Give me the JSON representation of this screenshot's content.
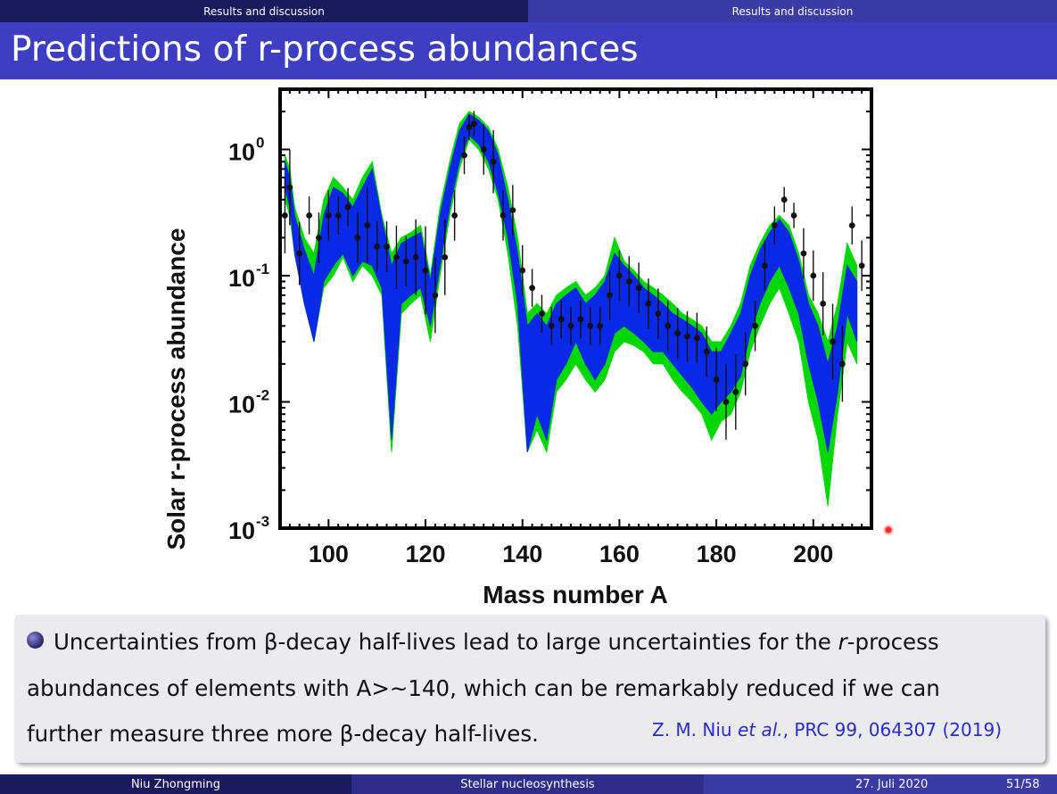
{
  "header": {
    "nav_left": "Results and discussion",
    "nav_right": "Results and discussion",
    "title": "Predictions of r-process abundances"
  },
  "chart_data": {
    "type": "line",
    "xlabel": "Mass number A",
    "ylabel": "Solar r-process abundance",
    "xlim": [
      90,
      212
    ],
    "ylim": [
      0.001,
      3
    ],
    "yscale": "log",
    "xticks": [
      100,
      120,
      140,
      160,
      180,
      200
    ],
    "yticks": [
      {
        "base": "10",
        "exp": "0"
      },
      {
        "base": "10",
        "exp": "-1"
      },
      {
        "base": "10",
        "exp": "-2"
      },
      {
        "base": "10",
        "exp": "-3"
      }
    ],
    "series": [
      {
        "color": "#00d800",
        "x": [
          91,
          92,
          93,
          95,
          97,
          99,
          101,
          103,
          105,
          107,
          109,
          111,
          113,
          115,
          117,
          119,
          121,
          123,
          125,
          127,
          129,
          131,
          133,
          135,
          137,
          139,
          141,
          143,
          145,
          147,
          149,
          151,
          153,
          155,
          157,
          159,
          161,
          163,
          165,
          167,
          169,
          171,
          173,
          175,
          177,
          179,
          181,
          183,
          185,
          187,
          189,
          191,
          193,
          195,
          197,
          199,
          201,
          203,
          205,
          207,
          209
        ],
        "lo": [
          0.4,
          0.3,
          0.15,
          0.06,
          0.03,
          0.08,
          0.1,
          0.14,
          0.09,
          0.12,
          0.1,
          0.07,
          0.004,
          0.05,
          0.06,
          0.07,
          0.03,
          0.1,
          0.3,
          0.7,
          1.2,
          1.0,
          0.7,
          0.4,
          0.15,
          0.04,
          0.004,
          0.006,
          0.004,
          0.012,
          0.015,
          0.02,
          0.015,
          0.012,
          0.015,
          0.025,
          0.03,
          0.028,
          0.025,
          0.02,
          0.02,
          0.015,
          0.012,
          0.01,
          0.008,
          0.005,
          0.007,
          0.008,
          0.012,
          0.025,
          0.04,
          0.06,
          0.08,
          0.05,
          0.03,
          0.01,
          0.005,
          0.0015,
          0.008,
          0.03,
          0.02
        ],
        "hi": [
          0.9,
          0.7,
          0.35,
          0.2,
          0.15,
          0.4,
          0.6,
          0.5,
          0.4,
          0.6,
          0.8,
          0.3,
          0.15,
          0.2,
          0.22,
          0.25,
          0.1,
          0.35,
          0.8,
          1.6,
          2.0,
          1.8,
          1.5,
          1.0,
          0.5,
          0.2,
          0.05,
          0.06,
          0.05,
          0.07,
          0.08,
          0.09,
          0.07,
          0.08,
          0.1,
          0.2,
          0.13,
          0.11,
          0.09,
          0.08,
          0.07,
          0.06,
          0.05,
          0.045,
          0.04,
          0.03,
          0.03,
          0.04,
          0.06,
          0.12,
          0.18,
          0.25,
          0.3,
          0.25,
          0.15,
          0.07,
          0.05,
          0.03,
          0.06,
          0.18,
          0.12
        ]
      },
      {
        "color": "#0a28e8",
        "x": [
          91,
          92,
          93,
          95,
          97,
          99,
          101,
          103,
          105,
          107,
          109,
          111,
          113,
          115,
          117,
          119,
          121,
          123,
          125,
          127,
          129,
          131,
          133,
          135,
          137,
          139,
          141,
          143,
          145,
          147,
          149,
          151,
          153,
          155,
          157,
          159,
          161,
          163,
          165,
          167,
          169,
          171,
          173,
          175,
          177,
          179,
          181,
          183,
          185,
          187,
          189,
          191,
          193,
          195,
          197,
          199,
          201,
          203,
          205,
          207,
          209
        ],
        "lo": [
          0.5,
          0.35,
          0.15,
          0.06,
          0.03,
          0.09,
          0.12,
          0.15,
          0.1,
          0.13,
          0.12,
          0.08,
          0.005,
          0.06,
          0.07,
          0.08,
          0.04,
          0.12,
          0.35,
          0.8,
          1.3,
          1.1,
          0.8,
          0.45,
          0.2,
          0.06,
          0.004,
          0.008,
          0.005,
          0.015,
          0.02,
          0.03,
          0.02,
          0.015,
          0.02,
          0.035,
          0.04,
          0.035,
          0.03,
          0.025,
          0.025,
          0.02,
          0.016,
          0.013,
          0.01,
          0.008,
          0.01,
          0.012,
          0.016,
          0.035,
          0.06,
          0.09,
          0.12,
          0.08,
          0.05,
          0.02,
          0.01,
          0.004,
          0.012,
          0.05,
          0.03
        ],
        "hi": [
          0.8,
          0.6,
          0.3,
          0.16,
          0.1,
          0.3,
          0.5,
          0.45,
          0.35,
          0.5,
          0.7,
          0.28,
          0.12,
          0.18,
          0.2,
          0.22,
          0.09,
          0.3,
          0.7,
          1.4,
          1.9,
          1.7,
          1.4,
          0.9,
          0.4,
          0.15,
          0.04,
          0.05,
          0.04,
          0.06,
          0.07,
          0.08,
          0.06,
          0.07,
          0.09,
          0.15,
          0.12,
          0.1,
          0.08,
          0.07,
          0.06,
          0.05,
          0.045,
          0.04,
          0.035,
          0.025,
          0.025,
          0.035,
          0.05,
          0.1,
          0.16,
          0.22,
          0.28,
          0.22,
          0.13,
          0.06,
          0.04,
          0.02,
          0.04,
          0.12,
          0.09
        ]
      },
      {
        "type": "scatter",
        "color": "#111111",
        "x": [
          91,
          92,
          94,
          96,
          98,
          100,
          102,
          104,
          106,
          108,
          110,
          112,
          114,
          116,
          118,
          120,
          122,
          124,
          126,
          128,
          129,
          130,
          132,
          134,
          136,
          138,
          140,
          142,
          144,
          146,
          148,
          150,
          152,
          154,
          156,
          158,
          160,
          162,
          164,
          166,
          168,
          170,
          172,
          174,
          176,
          178,
          180,
          182,
          184,
          186,
          188,
          190,
          192,
          194,
          196,
          198,
          200,
          202,
          204,
          206,
          208,
          210
        ],
        "y": [
          0.3,
          0.5,
          0.15,
          0.3,
          0.2,
          0.3,
          0.3,
          0.35,
          0.2,
          0.25,
          0.17,
          0.17,
          0.14,
          0.13,
          0.14,
          0.11,
          0.07,
          0.14,
          0.3,
          0.9,
          1.5,
          1.6,
          1.0,
          0.8,
          0.3,
          0.33,
          0.11,
          0.08,
          0.05,
          0.04,
          0.045,
          0.04,
          0.045,
          0.04,
          0.04,
          0.07,
          0.1,
          0.09,
          0.08,
          0.06,
          0.05,
          0.04,
          0.035,
          0.033,
          0.032,
          0.025,
          0.015,
          0.01,
          0.012,
          0.02,
          0.04,
          0.12,
          0.25,
          0.4,
          0.3,
          0.15,
          0.1,
          0.06,
          0.03,
          0.02,
          0.25,
          0.12
        ],
        "err": [
          0.3,
          0.3,
          0.25,
          0.15,
          0.2,
          0.2,
          0.15,
          0.15,
          0.2,
          0.3,
          0.2,
          0.2,
          0.25,
          0.2,
          0.3,
          0.35,
          0.3,
          0.3,
          0.2,
          0.15,
          0.1,
          0.1,
          0.2,
          0.25,
          0.2,
          0.2,
          0.2,
          0.15,
          0.15,
          0.15,
          0.15,
          0.15,
          0.15,
          0.15,
          0.15,
          0.2,
          0.2,
          0.2,
          0.2,
          0.2,
          0.2,
          0.2,
          0.2,
          0.2,
          0.2,
          0.2,
          0.25,
          0.3,
          0.3,
          0.25,
          0.2,
          0.2,
          0.15,
          0.1,
          0.1,
          0.2,
          0.2,
          0.25,
          0.3,
          0.3,
          0.15,
          0.2
        ]
      }
    ]
  },
  "note": {
    "line1_a": "Uncertainties from β-decay half-lives lead to large uncertainties for the ",
    "line1_em": "r",
    "line1_b": "-process",
    "line2": "abundances of elements with A>~140, which can be remarkably reduced if we can",
    "line3": "further measure three more β-decay half-lives.",
    "ref_a": "Z. M. Niu ",
    "ref_em": "et al.",
    "ref_b": ", PRC 99, 064307 (2019)"
  },
  "footer": {
    "author": "Niu Zhongming",
    "topic": "Stellar nucleosynthesis",
    "date": "27. Juli 2020",
    "page": "51/58"
  }
}
